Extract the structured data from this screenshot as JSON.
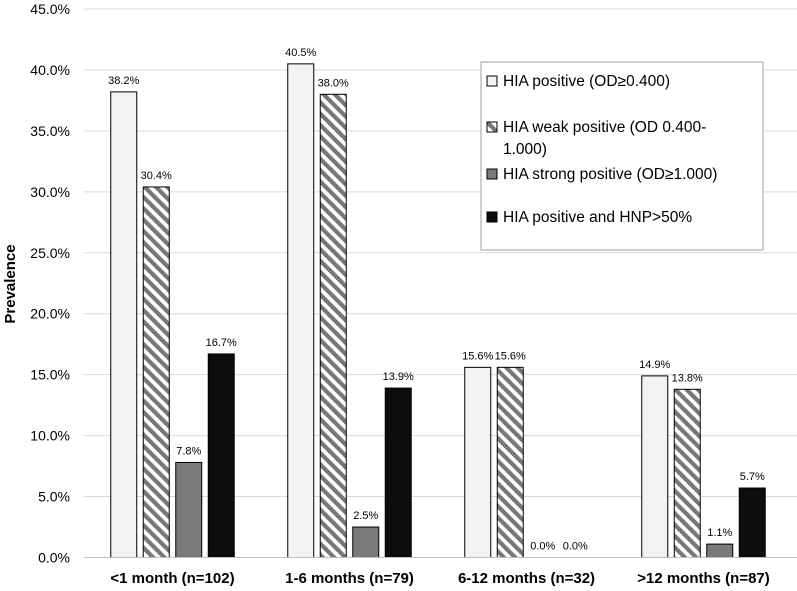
{
  "chart_data": {
    "type": "bar",
    "categories": [
      "<1 month (n=102)",
      "1-6 months (n=79)",
      "6-12 months (n=32)",
      ">12 months (n=87)"
    ],
    "series": [
      {
        "name": "HIA positive (OD≥0.400)",
        "values": [
          38.2,
          40.5,
          15.6,
          14.9
        ],
        "labels": [
          "38.2%",
          "40.5%",
          "15.6%",
          "14.9%"
        ],
        "color": "#f2f2f2",
        "pattern": "solid"
      },
      {
        "name": "HIA weak positive (OD 0.400-1.000)",
        "values": [
          30.4,
          38.0,
          15.6,
          13.8
        ],
        "labels": [
          "30.4%",
          "38.0%",
          "15.6%",
          "13.8%"
        ],
        "color": "#7f7f7f",
        "pattern": "diagonal-hatch"
      },
      {
        "name": "HIA strong positive (OD≥1.000)",
        "values": [
          7.8,
          2.5,
          0.0,
          1.1
        ],
        "labels": [
          "7.8%",
          "2.5%",
          "0.0%",
          "1.1%"
        ],
        "color": "#7a7a7a",
        "pattern": "solid"
      },
      {
        "name": "HIA positive and HNP>50%",
        "values": [
          16.7,
          13.9,
          0.0,
          5.7
        ],
        "labels": [
          "16.7%",
          "13.9%",
          "0.0%",
          "5.7%"
        ],
        "color": "#0d0d0d",
        "pattern": "solid"
      }
    ],
    "ylabel": "Prevalence",
    "xlabel": "",
    "title": "",
    "ylim": [
      0,
      45
    ],
    "yticks": [
      "0.0%",
      "5.0%",
      "10.0%",
      "15.0%",
      "20.0%",
      "25.0%",
      "30.0%",
      "35.0%",
      "40.0%",
      "45.0%"
    ],
    "grid": true,
    "legend_position": "top-right"
  },
  "legend": {
    "items": [
      {
        "line1": "HIA positive (OD≥0.400)",
        "line2": ""
      },
      {
        "line1": "HIA weak positive (OD 0.400-",
        "line2": "1.000)"
      },
      {
        "line1": "HIA strong positive (OD≥1.000)",
        "line2": ""
      },
      {
        "line1": "HIA positive and HNP>50%",
        "line2": ""
      }
    ]
  }
}
